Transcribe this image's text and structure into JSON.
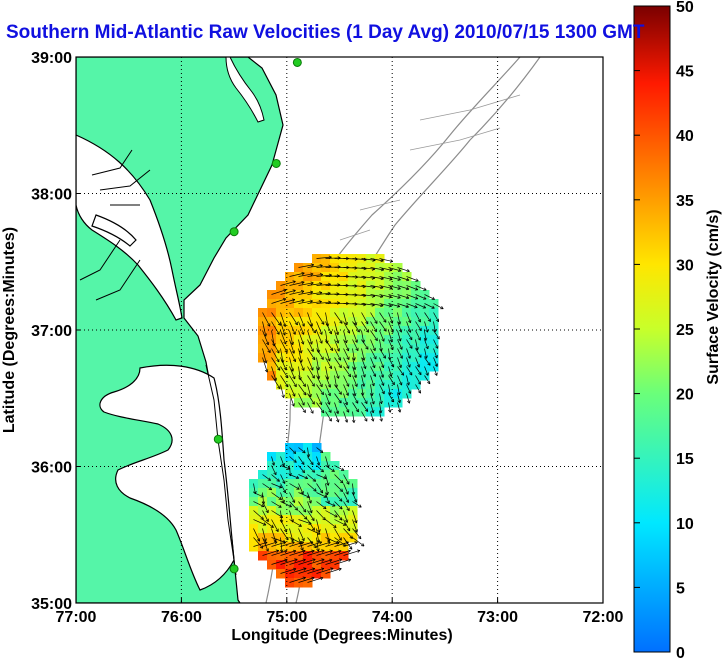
{
  "title": "Southern Mid-Atlantic Raw Velocities (1 Day Avg) 2010/07/15 1300 GMT",
  "map": {
    "xlabel": "Longitude (Degrees:Minutes)",
    "ylabel": "Latitude (Degrees:Minutes)",
    "x_ticks": [
      "77:00",
      "76:00",
      "75:00",
      "74:00",
      "73:00",
      "72:00"
    ],
    "y_ticks": [
      "39:00",
      "38:00",
      "37:00",
      "36:00",
      "35:00"
    ],
    "lon_range": [
      -77,
      -72
    ],
    "lat_range": [
      35,
      39
    ],
    "grid": true,
    "land_color": "#55f5a8",
    "coast_color": "#000000",
    "bathymetry_color": "#8c8c8c",
    "station_color": "#22cc22"
  },
  "colorbar": {
    "label": "Surface Velocity (cm/s)",
    "ticks": [
      "0",
      "5",
      "10",
      "15",
      "20",
      "25",
      "30",
      "35",
      "40",
      "45",
      "50"
    ],
    "range": [
      0,
      50
    ],
    "colormap": "jet"
  },
  "stations": [
    {
      "lon": -74.9,
      "lat": 38.96
    },
    {
      "lon": -75.1,
      "lat": 38.22
    },
    {
      "lon": -75.5,
      "lat": 37.72
    },
    {
      "lon": -75.65,
      "lat": 36.2
    },
    {
      "lon": -75.5,
      "lat": 35.25
    }
  ]
}
